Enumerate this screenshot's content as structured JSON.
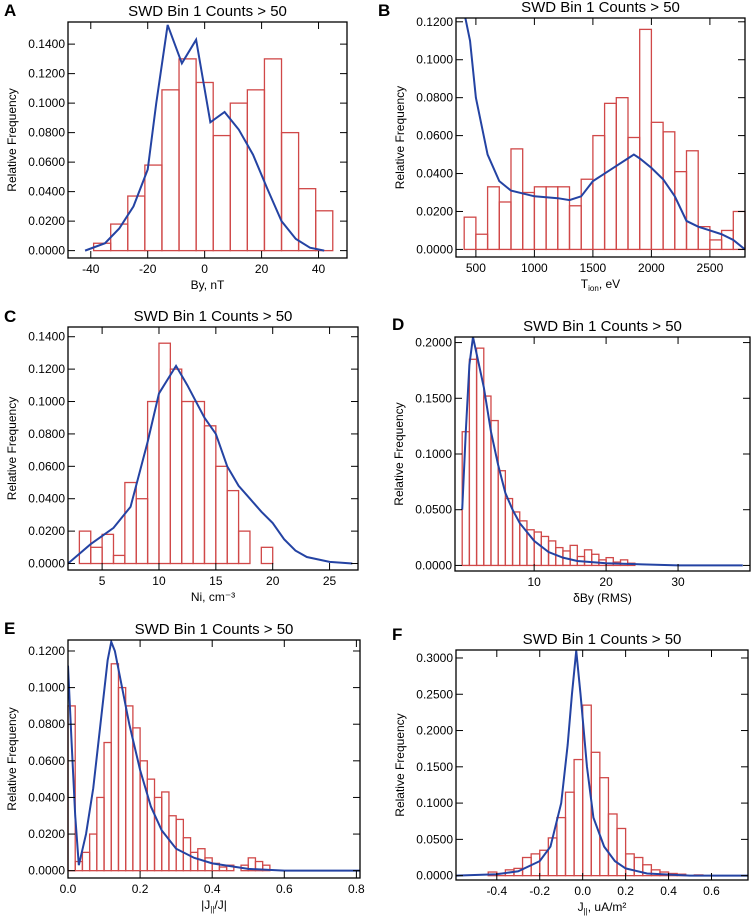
{
  "chart_data": [
    {
      "type": "histogram",
      "panel": "A",
      "title": "SWD Bin 1 Counts > 50",
      "x_label": [
        "By, nT"
      ],
      "y_label": "Relative Frequency",
      "color": "#d04848",
      "bins": [
        -39,
        -33,
        -27,
        -21,
        -15,
        -9,
        -3,
        3,
        9,
        15,
        21,
        27,
        33,
        39,
        45
      ],
      "values": [
        0.005,
        0.018,
        0.037,
        0.058,
        0.109,
        0.13,
        0.114,
        0.078,
        0.1,
        0.109,
        0.13,
        0.08,
        0.042,
        0.027
      ],
      "line": {
        "color": "#2443a3",
        "x": [
          -42,
          -35,
          -30,
          -25,
          -20,
          -17,
          -13,
          -8,
          -3,
          2,
          7,
          12,
          17,
          22,
          27,
          32,
          37,
          42
        ],
        "values": [
          0.0,
          0.005,
          0.015,
          0.03,
          0.055,
          0.1,
          0.153,
          0.127,
          0.143,
          0.087,
          0.094,
          0.082,
          0.065,
          0.042,
          0.02,
          0.008,
          0.002,
          0.0
        ]
      },
      "xlim": [
        -48,
        50
      ],
      "xticks": [
        -40,
        -20,
        0,
        20,
        40
      ],
      "ylim": [
        -0.005,
        0.155
      ],
      "yticks": [
        {
          "value": 0,
          "label": "0.0000"
        },
        {
          "value": 0.02,
          "label": "0.0200"
        },
        {
          "value": 0.04,
          "label": "0.0400"
        },
        {
          "value": 0.06,
          "label": "0.0600"
        },
        {
          "value": 0.08,
          "label": "0.0800"
        },
        {
          "value": 0.1,
          "label": "0.1000"
        },
        {
          "value": 0.12,
          "label": "0.1200"
        },
        {
          "value": 0.14,
          "label": "0.1400"
        }
      ]
    },
    {
      "type": "histogram",
      "panel": "B",
      "title": "SWD Bin 1 Counts > 50",
      "x_label": [
        "T",
        "ion",
        ", eV"
      ],
      "y_label": "Relative Frequency",
      "color": "#d04848",
      "bins": [
        400,
        500,
        600,
        700,
        800,
        900,
        1000,
        1100,
        1200,
        1300,
        1400,
        1500,
        1600,
        1700,
        1800,
        1900,
        2000,
        2100,
        2200,
        2300,
        2400,
        2500,
        2600,
        2700,
        2800
      ],
      "values": [
        0.017,
        0.008,
        0.033,
        0.025,
        0.053,
        0.03,
        0.033,
        0.033,
        0.033,
        0.023,
        0.037,
        0.06,
        0.077,
        0.08,
        0.059,
        0.116,
        0.067,
        0.062,
        0.041,
        0.052,
        0.012,
        0.005,
        0.01,
        0.02
      ],
      "line": {
        "color": "#2443a3",
        "x": [
          400,
          450,
          500,
          600,
          700,
          800,
          1000,
          1200,
          1300,
          1400,
          1500,
          1600,
          1700,
          1800,
          1850,
          1900,
          2000,
          2100,
          2200,
          2300,
          2400,
          2500,
          2600,
          2700,
          2800
        ],
        "values": [
          0.125,
          0.11,
          0.08,
          0.05,
          0.036,
          0.031,
          0.028,
          0.027,
          0.026,
          0.028,
          0.036,
          0.04,
          0.044,
          0.048,
          0.05,
          0.048,
          0.043,
          0.037,
          0.028,
          0.015,
          0.012,
          0.01,
          0.008,
          0.005,
          0.0
        ]
      },
      "xlim": [
        330,
        2800
      ],
      "xticks": [
        500,
        1000,
        1500,
        2000,
        2500
      ],
      "ylim": [
        -0.004,
        0.122
      ],
      "yticks": [
        {
          "value": 0,
          "label": "0.0000"
        },
        {
          "value": 0.02,
          "label": "0.0200"
        },
        {
          "value": 0.04,
          "label": "0.0400"
        },
        {
          "value": 0.06,
          "label": "0.0600"
        },
        {
          "value": 0.08,
          "label": "0.0800"
        },
        {
          "value": 0.1,
          "label": "0.1000"
        },
        {
          "value": 0.12,
          "label": "0.1200"
        }
      ]
    },
    {
      "type": "histogram",
      "panel": "C",
      "title": "SWD Bin 1 Counts > 50",
      "x_label": [
        "Ni, cm⁻³"
      ],
      "y_label": "Relative Frequency",
      "color": "#d04848",
      "bins": [
        3,
        4,
        5,
        6,
        7,
        8,
        9,
        10,
        11,
        12,
        13,
        14,
        15,
        16,
        17,
        18,
        19,
        20
      ],
      "values": [
        0.02,
        0.01,
        0.018,
        0.005,
        0.05,
        0.04,
        0.1,
        0.136,
        0.12,
        0.1,
        0.1,
        0.085,
        0.06,
        0.045,
        0.02,
        0.0,
        0.01
      ],
      "line": {
        "color": "#2443a3",
        "x": [
          2,
          4,
          6,
          7.5,
          9,
          10,
          11.5,
          12.5,
          14,
          15,
          16,
          17,
          18,
          19,
          20,
          21,
          22,
          23,
          25,
          27
        ],
        "values": [
          0.0,
          0.012,
          0.022,
          0.035,
          0.075,
          0.105,
          0.122,
          0.11,
          0.09,
          0.08,
          0.06,
          0.048,
          0.04,
          0.032,
          0.025,
          0.015,
          0.008,
          0.004,
          0.001,
          0.0
        ]
      },
      "xlim": [
        2,
        27.5
      ],
      "xticks": [
        5,
        10,
        15,
        20,
        25
      ],
      "ylim": [
        -0.004,
        0.146
      ],
      "yticks": [
        {
          "value": 0,
          "label": "0.0000"
        },
        {
          "value": 0.02,
          "label": "0.0200"
        },
        {
          "value": 0.04,
          "label": "0.0400"
        },
        {
          "value": 0.06,
          "label": "0.0600"
        },
        {
          "value": 0.08,
          "label": "0.0800"
        },
        {
          "value": 0.1,
          "label": "0.1000"
        },
        {
          "value": 0.12,
          "label": "0.1200"
        },
        {
          "value": 0.14,
          "label": "0.1400"
        }
      ]
    },
    {
      "type": "histogram",
      "panel": "D",
      "title": "SWD Bin 1 Counts > 50",
      "x_label": [
        "δBy (RMS)"
      ],
      "y_label": "Relative Frequency",
      "color": "#d04848",
      "bins": [
        0,
        1,
        2,
        3,
        4,
        5,
        6,
        7,
        8,
        9,
        10,
        11,
        12,
        13,
        14,
        15,
        16,
        17,
        18,
        19,
        20,
        21,
        22,
        23,
        24
      ],
      "values": [
        0.12,
        0.185,
        0.195,
        0.152,
        0.13,
        0.085,
        0.06,
        0.048,
        0.04,
        0.032,
        0.03,
        0.026,
        0.022,
        0.016,
        0.013,
        0.018,
        0.008,
        0.014,
        0.01,
        0.005,
        0.007,
        0.003,
        0.005,
        0.002
      ],
      "line": {
        "color": "#2443a3",
        "x": [
          0,
          0.5,
          1,
          1.5,
          2,
          3,
          4,
          5,
          6,
          7,
          8,
          9,
          10,
          12,
          14,
          16,
          20,
          25,
          30,
          39
        ],
        "values": [
          0.05,
          0.12,
          0.18,
          0.205,
          0.19,
          0.16,
          0.12,
          0.09,
          0.065,
          0.05,
          0.038,
          0.03,
          0.022,
          0.012,
          0.007,
          0.004,
          0.002,
          0.001,
          0.0,
          0.0
        ]
      },
      "xlim": [
        -1,
        40
      ],
      "xticks": [
        10,
        20,
        30
      ],
      "ylim": [
        -0.005,
        0.205
      ],
      "yticks": [
        {
          "value": 0,
          "label": "0.0000"
        },
        {
          "value": 0.05,
          "label": "0.0500"
        },
        {
          "value": 0.1,
          "label": "0.1000"
        },
        {
          "value": 0.15,
          "label": "0.1500"
        },
        {
          "value": 0.2,
          "label": "0.2000"
        }
      ]
    },
    {
      "type": "histogram",
      "panel": "E",
      "title": "SWD Bin 1 Counts > 50",
      "x_label": [
        "|J",
        "||",
        "/J|"
      ],
      "y_label": "Relative Frequency",
      "color": "#d04848",
      "bins": [
        0,
        0.02,
        0.04,
        0.06,
        0.08,
        0.1,
        0.12,
        0.14,
        0.16,
        0.18,
        0.2,
        0.22,
        0.24,
        0.26,
        0.28,
        0.3,
        0.32,
        0.34,
        0.36,
        0.38,
        0.4,
        0.42,
        0.44,
        0.46,
        0.48,
        0.5,
        0.52,
        0.54,
        0.56
      ],
      "values": [
        0.09,
        0.005,
        0.01,
        0.02,
        0.04,
        0.07,
        0.113,
        0.1,
        0.09,
        0.078,
        0.06,
        0.05,
        0.04,
        0.043,
        0.03,
        0.028,
        0.018,
        0.01,
        0.012,
        0.007,
        0.004,
        0.002,
        0.003,
        0.0,
        0.003,
        0.007,
        0.005,
        0.003
      ],
      "line": {
        "color": "#2443a3",
        "x": [
          0,
          0.01,
          0.02,
          0.03,
          0.05,
          0.07,
          0.09,
          0.11,
          0.12,
          0.13,
          0.15,
          0.17,
          0.2,
          0.23,
          0.26,
          0.3,
          0.35,
          0.4,
          0.5,
          0.6,
          0.81
        ],
        "values": [
          0.112,
          0.07,
          0.03,
          0.003,
          0.02,
          0.045,
          0.08,
          0.115,
          0.125,
          0.12,
          0.1,
          0.08,
          0.055,
          0.035,
          0.022,
          0.012,
          0.007,
          0.004,
          0.001,
          0.0,
          0.0
        ]
      },
      "xlim": [
        0,
        0.81
      ],
      "xticks": [
        {
          "value": 0,
          "label": "0.0"
        },
        0.2,
        0.4,
        0.6,
        0.8
      ],
      "ylim": [
        -0.004,
        0.126
      ],
      "yticks": [
        {
          "value": 0,
          "label": "0.0000"
        },
        {
          "value": 0.02,
          "label": "0.0200"
        },
        {
          "value": 0.04,
          "label": "0.0400"
        },
        {
          "value": 0.06,
          "label": "0.0600"
        },
        {
          "value": 0.08,
          "label": "0.0800"
        },
        {
          "value": 0.1,
          "label": "0.1000"
        },
        {
          "value": 0.12,
          "label": "0.1200"
        }
      ]
    },
    {
      "type": "histogram",
      "panel": "F",
      "title": "SWD Bin 1 Counts > 50",
      "x_label": [
        "J",
        "||",
        ", uA/m²"
      ],
      "y_label": "Relative Frequency",
      "color": "#d04848",
      "bins": [
        -0.44,
        -0.4,
        -0.36,
        -0.32,
        -0.28,
        -0.24,
        -0.2,
        -0.16,
        -0.12,
        -0.08,
        -0.04,
        0,
        0.04,
        0.08,
        0.12,
        0.16,
        0.2,
        0.24,
        0.28,
        0.32,
        0.36,
        0.4,
        0.44,
        0.48,
        0.52,
        0.56
      ],
      "values": [
        0.005,
        0.003,
        0.008,
        0.01,
        0.025,
        0.03,
        0.035,
        0.052,
        0.08,
        0.115,
        0.16,
        0.235,
        0.17,
        0.135,
        0.085,
        0.065,
        0.03,
        0.025,
        0.015,
        0.008,
        0.005,
        0.003,
        0.002,
        0.0,
        0.001
      ],
      "line": {
        "color": "#2443a3",
        "x": [
          -0.59,
          -0.4,
          -0.3,
          -0.2,
          -0.15,
          -0.1,
          -0.07,
          -0.05,
          -0.03,
          -0.01,
          0.02,
          0.05,
          0.1,
          0.15,
          0.2,
          0.3,
          0.5,
          0.77
        ],
        "values": [
          0.0,
          0.002,
          0.006,
          0.02,
          0.04,
          0.1,
          0.18,
          0.25,
          0.31,
          0.25,
          0.15,
          0.08,
          0.04,
          0.02,
          0.01,
          0.003,
          0.0,
          0.0
        ]
      },
      "xlim": [
        -0.59,
        0.77
      ],
      "xticks": [
        -0.4,
        -0.2,
        {
          "value": 0,
          "label": "0.0"
        },
        0.2,
        0.4,
        0.6
      ],
      "ylim": [
        -0.006,
        0.311
      ],
      "yticks": [
        {
          "value": 0,
          "label": "0.0000"
        },
        {
          "value": 0.05,
          "label": "0.0500"
        },
        {
          "value": 0.1,
          "label": "0.1000"
        },
        {
          "value": 0.15,
          "label": "0.1500"
        },
        {
          "value": 0.2,
          "label": "0.2000"
        },
        {
          "value": 0.25,
          "label": "0.2500"
        },
        {
          "value": 0.3,
          "label": "0.3000"
        }
      ]
    }
  ]
}
